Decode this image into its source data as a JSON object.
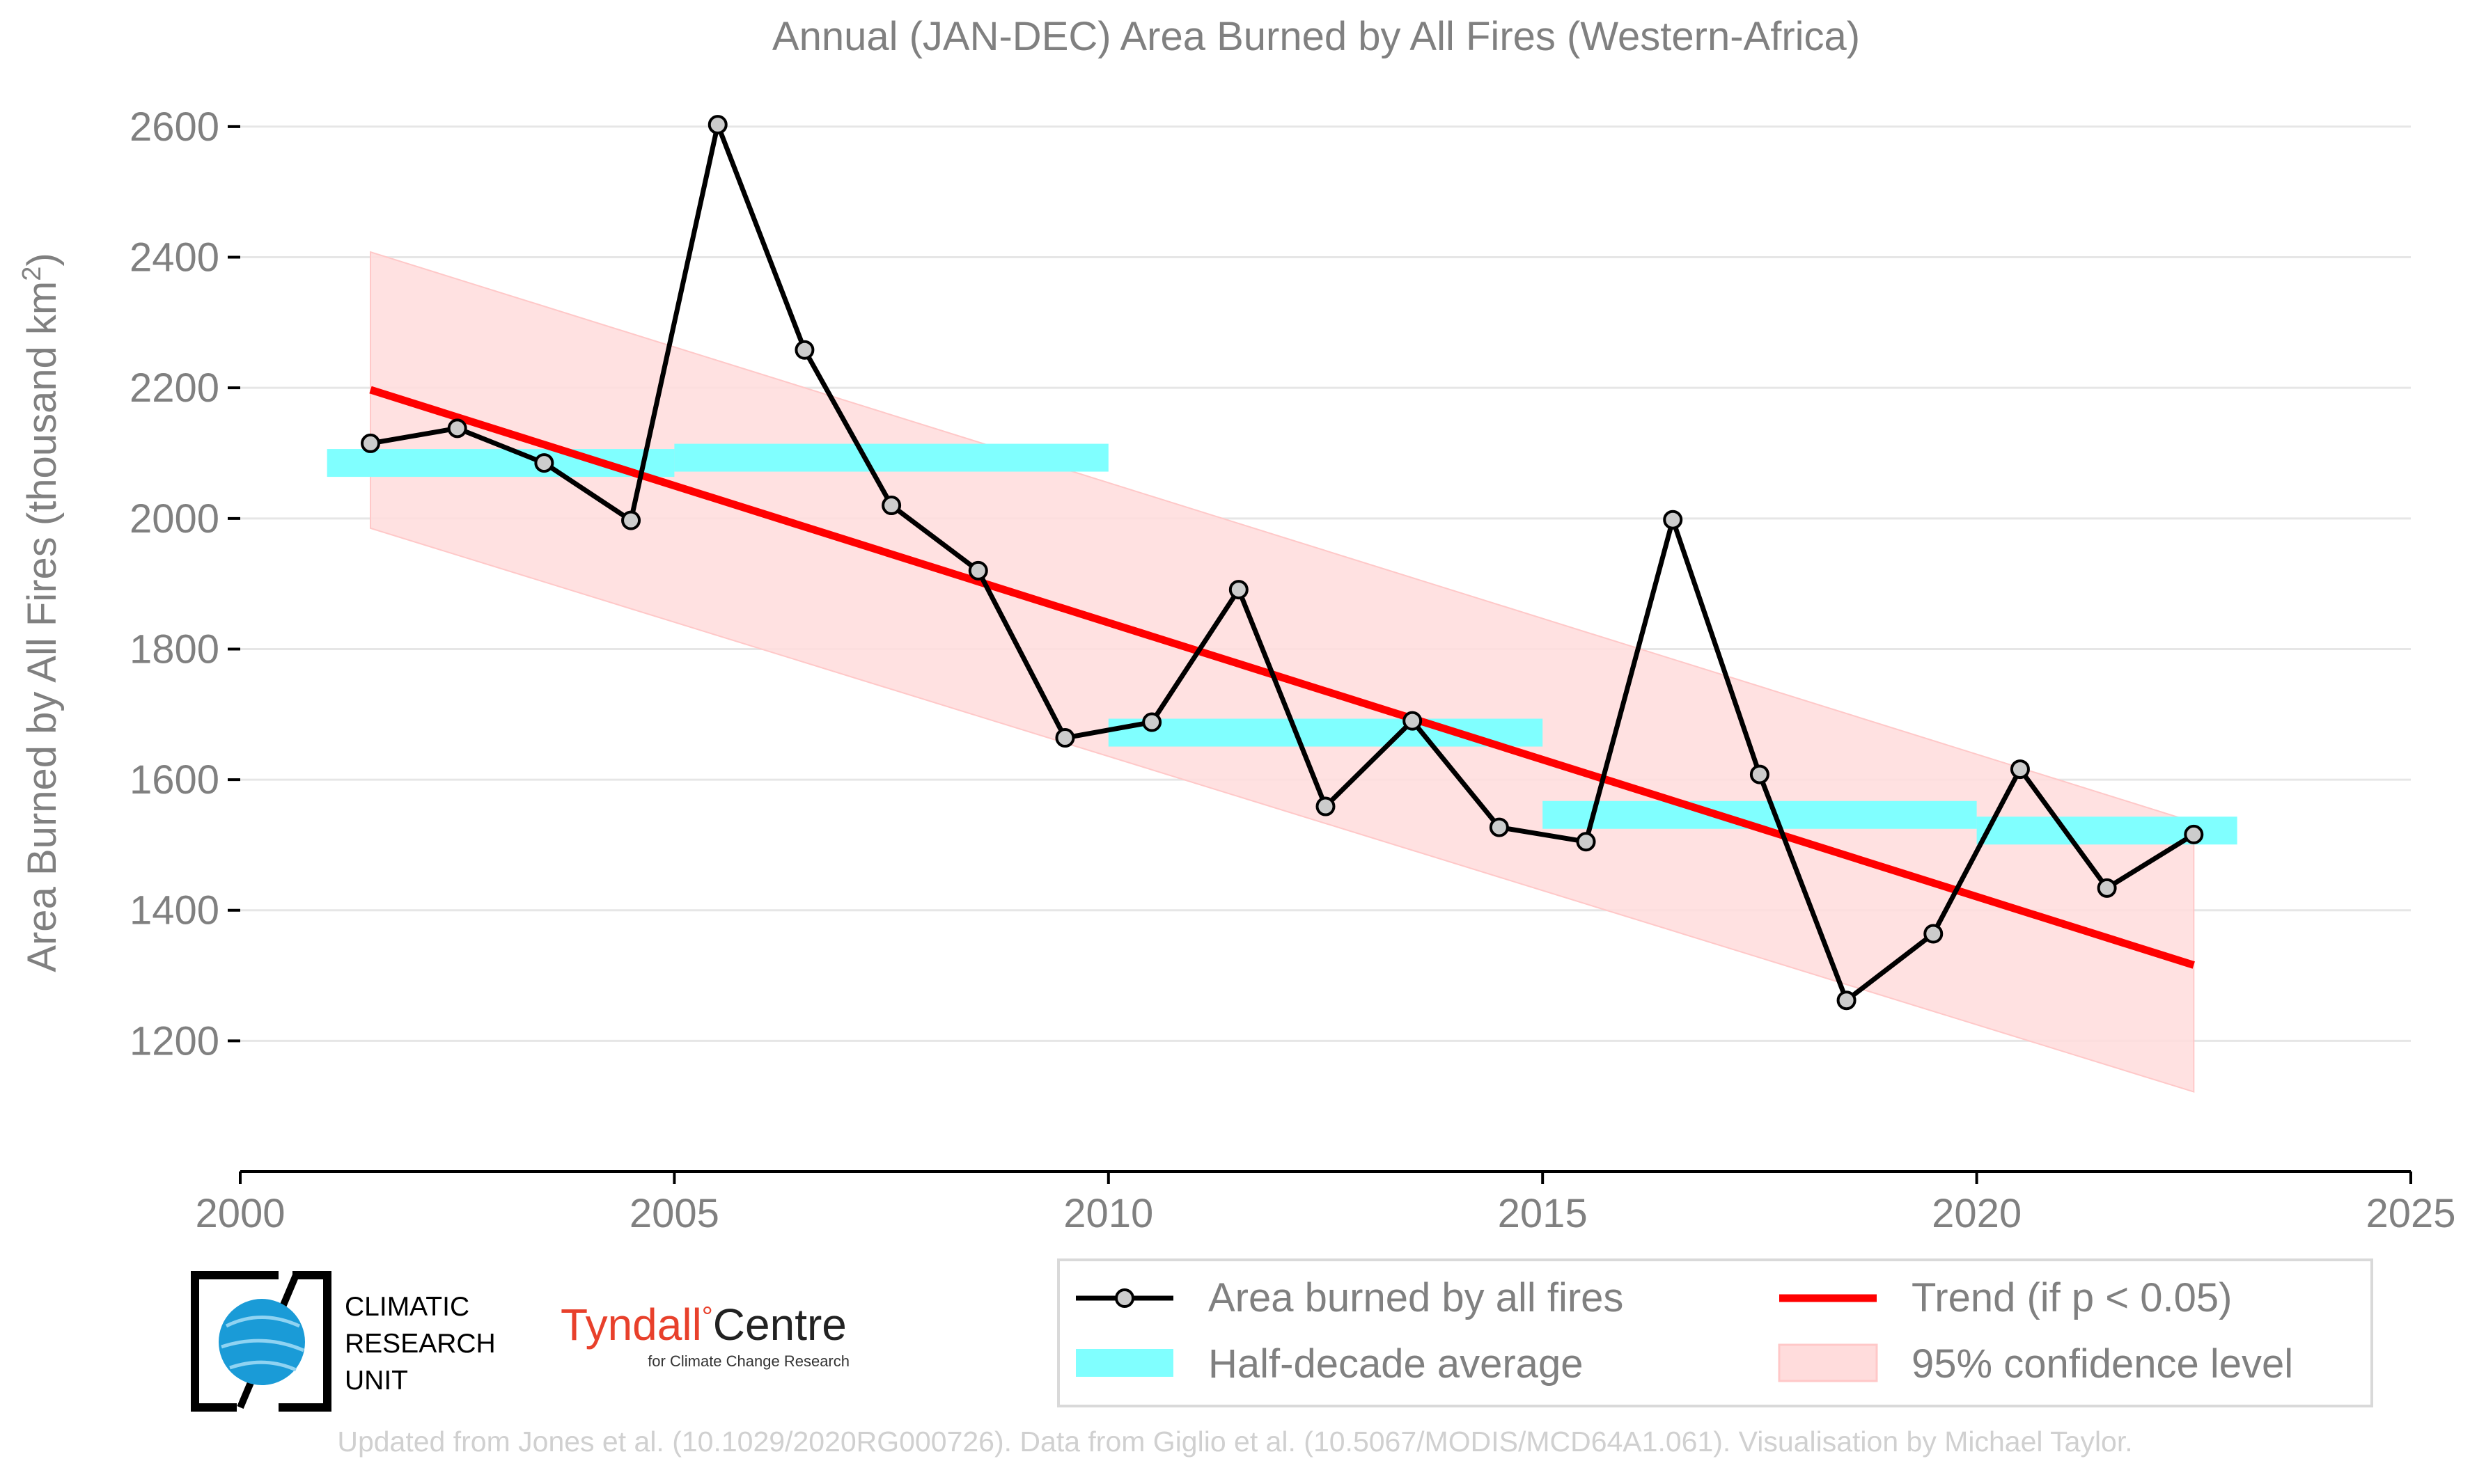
{
  "chart_data": {
    "type": "line",
    "title": "Annual (JAN-DEC) Area Burned by All Fires (Western-Africa)",
    "ylabel": "Area Burned by All Fires (thousand km",
    "ylabel_sup": "2",
    "ylabel_end": ")",
    "xlabel": "",
    "xlim": [
      2000,
      2025
    ],
    "ylim": [
      1000,
      2650
    ],
    "x_ticks": [
      2000,
      2005,
      2010,
      2015,
      2020,
      2025
    ],
    "y_ticks": [
      1200,
      1400,
      1600,
      1800,
      2000,
      2200,
      2400,
      2600
    ],
    "grid": "horizontal",
    "legend_position": "bottom-right",
    "series": [
      {
        "name": "Area burned by all fires",
        "color": "#000000",
        "marker_fill": "#cccccc",
        "x": [
          2001.5,
          2002.5,
          2003.5,
          2004.5,
          2005.5,
          2006.5,
          2007.5,
          2008.5,
          2009.5,
          2010.5,
          2011.5,
          2012.5,
          2013.5,
          2014.5,
          2015.5,
          2016.5,
          2017.5,
          2018.5,
          2019.5,
          2020.5,
          2021.5,
          2022.5
        ],
        "y": [
          2115,
          2138,
          2085,
          1997,
          2603,
          2258,
          2020,
          1920,
          1664,
          1688,
          1891,
          1559,
          1690,
          1527,
          1505,
          1998,
          1608,
          1262,
          1364,
          1616,
          1434,
          1516
        ]
      },
      {
        "name": "Half-decade average",
        "color": "#80ffff",
        "segments": [
          {
            "x0": 2001,
            "x1": 2005,
            "y": 2085
          },
          {
            "x0": 2005,
            "x1": 2010,
            "y": 2093
          },
          {
            "x0": 2010,
            "x1": 2015,
            "y": 1672
          },
          {
            "x0": 2015,
            "x1": 2020,
            "y": 1546
          },
          {
            "x0": 2020,
            "x1": 2023,
            "y": 1522
          }
        ]
      },
      {
        "name": "Trend (if p < 0.05)",
        "color": "#ff0000",
        "x": [
          2001.5,
          2022.5
        ],
        "y": [
          2197,
          1316
        ]
      },
      {
        "name": "95% confidence level",
        "color": "#ffdcdc",
        "x": [
          2001.5,
          2022.5
        ],
        "upper": [
          2408,
          1535
        ],
        "lower": [
          1985,
          1122
        ]
      }
    ]
  },
  "branding": {
    "cru_lines": [
      "CLIMATIC",
      "RESEARCH",
      "UNIT"
    ],
    "tyndall_name": "Tyndall",
    "tyndall_degree": "°",
    "tyndall_centre": "Centre",
    "tyndall_sub": "for Climate Change Research"
  },
  "credit": "Updated from Jones et al. (10.1029/2020RG000726). Data from Giglio et al. (10.5067/MODIS/MCD64A1.061). Visualisation by Michael Taylor.",
  "colors": {
    "text_gray": "#808080",
    "grid": "#e6e6e6",
    "axis": "#000000",
    "tyndall_red": "#e8402b"
  }
}
